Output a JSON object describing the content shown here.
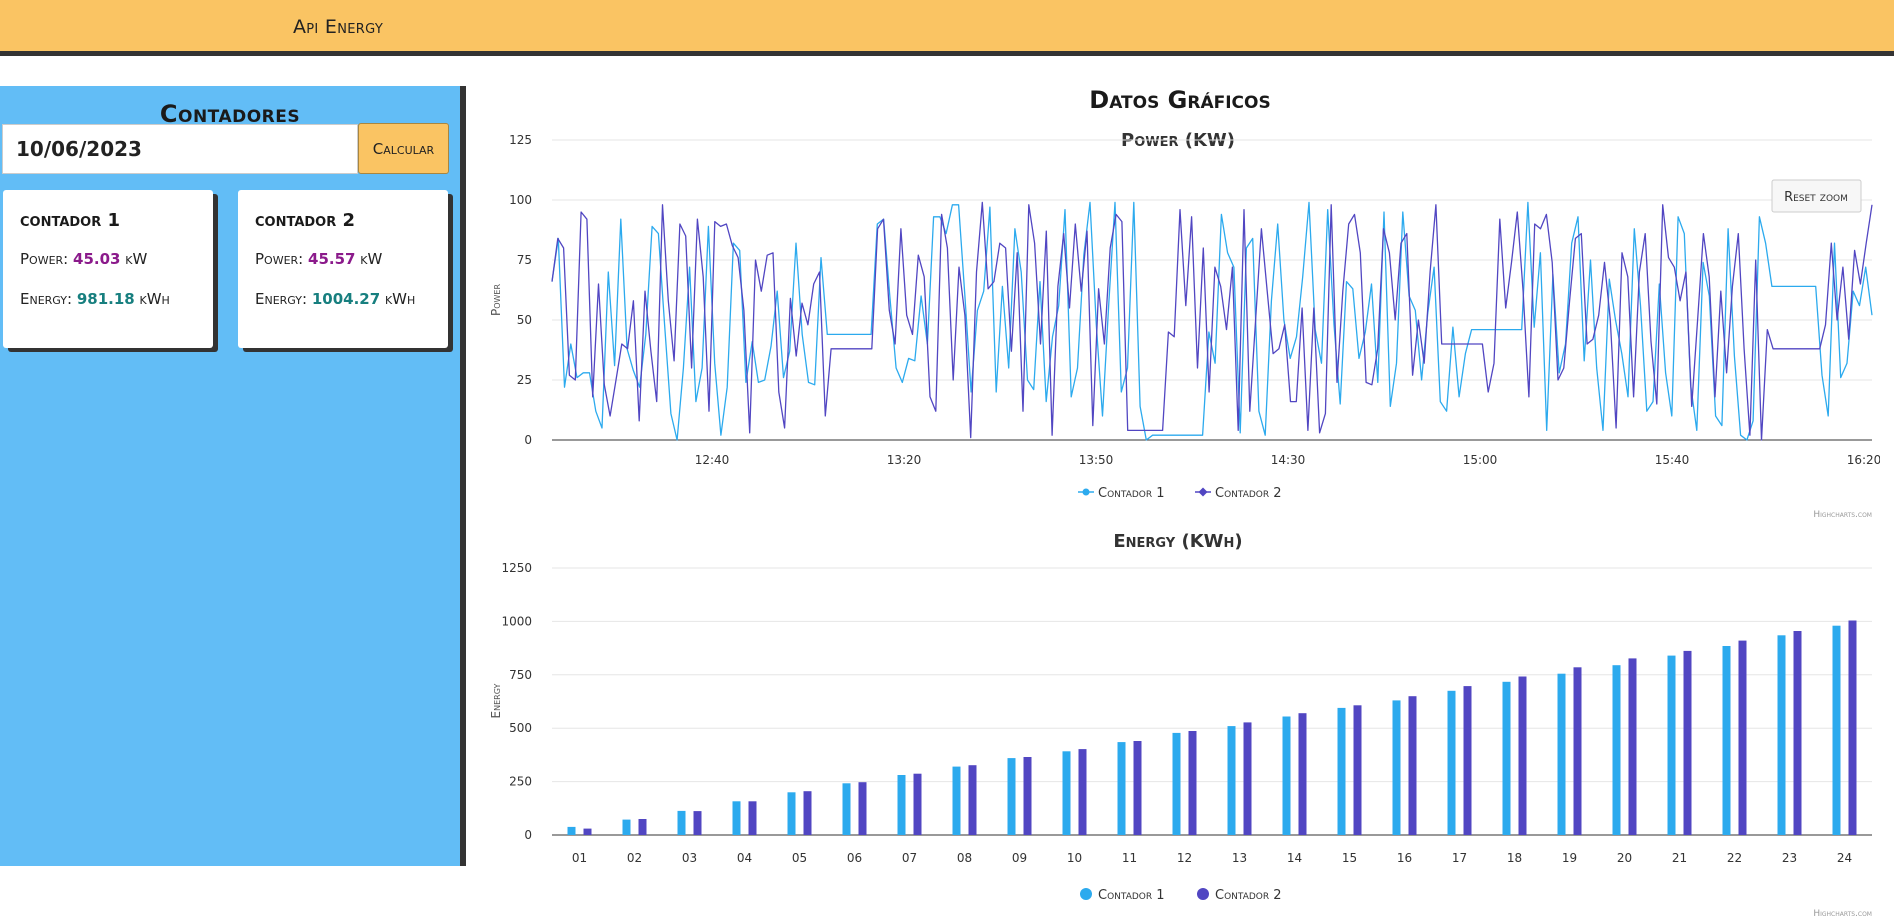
{
  "header": {
    "brand": "Api Energy"
  },
  "sidebar": {
    "title": "Contadores",
    "date_value": "10/06/2023",
    "calc_label": "Calcular",
    "cards": [
      {
        "title": "contador 1",
        "power_label": "Power:",
        "power_value": "45.03",
        "power_unit": "kW",
        "energy_label": "Energy:",
        "energy_value": "981.18",
        "energy_unit": "kWh"
      },
      {
        "title": "contador 2",
        "power_label": "Power:",
        "power_value": "45.57",
        "power_unit": "kW",
        "energy_label": "Energy:",
        "energy_value": "1004.27",
        "energy_unit": "kWh"
      }
    ]
  },
  "main": {
    "title": "Datos Gráficos"
  },
  "colors": {
    "series1": "#2caaee",
    "series2": "#5146c2",
    "header_bg": "#fac463",
    "sidebar_bg": "#62bdf6"
  },
  "chart_data": [
    {
      "type": "line",
      "title": "Power (KW)",
      "ylabel": "Power",
      "xlabel": "",
      "ylim": [
        0,
        125
      ],
      "yticks": [
        0,
        25,
        50,
        75,
        100,
        125
      ],
      "xticks": [
        "12:40",
        "13:20",
        "13:50",
        "14:30",
        "15:00",
        "15:40",
        "16:20"
      ],
      "reset_zoom_label": "Reset zoom",
      "credit": "Highcharts.com",
      "legend": "bottom-center",
      "series": [
        {
          "name": "Contador 1",
          "values": [
            66,
            84,
            22,
            40,
            26,
            28,
            28,
            12,
            5,
            70,
            31,
            92,
            38,
            29,
            22,
            44,
            89,
            86,
            48,
            11,
            0,
            30,
            72,
            16,
            30,
            89,
            32,
            2,
            22,
            82,
            79,
            24,
            41,
            24,
            25,
            39,
            62,
            26,
            37,
            82,
            44,
            24,
            23,
            76,
            44,
            44,
            44,
            44,
            44,
            44,
            44,
            44,
            90,
            92,
            60,
            30,
            24,
            34,
            33,
            60,
            40,
            93,
            93,
            86,
            98,
            98,
            60,
            20,
            54,
            62,
            97,
            20,
            64,
            30,
            88,
            70,
            25,
            21,
            66,
            16,
            43,
            56,
            96,
            18,
            30,
            77,
            99,
            48,
            10,
            57,
            99,
            20,
            30,
            99,
            14,
            0,
            2,
            2,
            2,
            2,
            2,
            2,
            2,
            2,
            2,
            45,
            32,
            94,
            78,
            72,
            3,
            80,
            84,
            12,
            2,
            58,
            90,
            50,
            34,
            43,
            68,
            99,
            46,
            32,
            96,
            48,
            15,
            66,
            63,
            34,
            45,
            65,
            24,
            95,
            14,
            32,
            95,
            60,
            54,
            25,
            53,
            72,
            16,
            12,
            47,
            18,
            36,
            46,
            46,
            46,
            46,
            46,
            46,
            46,
            46,
            46,
            99,
            47,
            78,
            4,
            69,
            28,
            40,
            82,
            93,
            33,
            75,
            30,
            4,
            67,
            50,
            36,
            18,
            88,
            56,
            12,
            16,
            65,
            28,
            10,
            93,
            86,
            23,
            4,
            74,
            60,
            10,
            6,
            88,
            35,
            2,
            0,
            8,
            93,
            82,
            64,
            64,
            64,
            64,
            64,
            64,
            64,
            64,
            27,
            10,
            82,
            26,
            32,
            62,
            56,
            72,
            52
          ]
        },
        {
          "name": "Contador 2",
          "values": [
            66,
            84,
            80,
            27,
            25,
            95,
            92,
            18,
            65,
            23,
            10,
            25,
            40,
            38,
            58,
            8,
            62,
            37,
            16,
            98,
            58,
            33,
            90,
            85,
            30,
            92,
            68,
            12,
            91,
            89,
            90,
            81,
            76,
            54,
            3,
            75,
            62,
            77,
            78,
            20,
            5,
            59,
            35,
            57,
            48,
            65,
            70,
            10,
            38,
            38,
            38,
            38,
            38,
            38,
            38,
            38,
            88,
            92,
            54,
            40,
            88,
            52,
            44,
            77,
            68,
            18,
            12,
            94,
            80,
            25,
            72,
            52,
            1,
            70,
            99,
            63,
            66,
            82,
            80,
            37,
            78,
            12,
            98,
            82,
            40,
            87,
            2,
            64,
            86,
            55,
            90,
            62,
            87,
            6,
            63,
            40,
            80,
            94,
            91,
            4,
            4,
            4,
            4,
            4,
            4,
            4,
            45,
            43,
            96,
            56,
            93,
            30,
            80,
            20,
            72,
            64,
            46,
            72,
            4,
            96,
            12,
            50,
            88,
            62,
            36,
            38,
            48,
            16,
            16,
            55,
            4,
            55,
            3,
            11,
            98,
            24,
            62,
            90,
            94,
            78,
            24,
            23,
            38,
            88,
            78,
            50,
            82,
            86,
            27,
            50,
            32,
            70,
            98,
            40,
            40,
            40,
            40,
            40,
            40,
            40,
            40,
            20,
            32,
            92,
            55,
            74,
            95,
            62,
            18,
            90,
            88,
            94,
            74,
            25,
            30,
            58,
            84,
            86,
            40,
            42,
            52,
            74,
            50,
            5,
            78,
            68,
            18,
            70,
            86,
            41,
            15,
            98,
            76,
            72,
            58,
            70,
            14,
            50,
            86,
            68,
            18,
            62,
            28,
            64,
            86,
            38,
            2,
            75,
            0,
            46,
            38,
            38,
            38,
            38,
            38,
            38,
            38,
            38,
            38,
            48,
            82,
            50,
            72,
            42,
            79,
            65,
            82,
            98
          ]
        }
      ]
    },
    {
      "type": "bar",
      "title": "Energy (KWh)",
      "ylabel": "Energy",
      "xlabel": "",
      "ylim": [
        0,
        1250
      ],
      "yticks": [
        0,
        250,
        500,
        750,
        1000,
        1250
      ],
      "categories": [
        "01",
        "02",
        "03",
        "04",
        "05",
        "06",
        "07",
        "08",
        "09",
        "10",
        "11",
        "12",
        "13",
        "14",
        "15",
        "16",
        "17",
        "18",
        "19",
        "20",
        "21",
        "22",
        "23",
        "24"
      ],
      "credit": "Highcharts.com",
      "legend": "bottom-center",
      "series": [
        {
          "name": "Contador 1",
          "values": [
            38,
            72,
            113,
            158,
            200,
            242,
            281,
            320,
            360,
            392,
            435,
            478,
            510,
            555,
            595,
            630,
            675,
            717,
            755,
            795,
            840,
            885,
            935,
            980
          ]
        },
        {
          "name": "Contador 2",
          "values": [
            30,
            75,
            112,
            158,
            205,
            247,
            287,
            327,
            365,
            402,
            440,
            487,
            527,
            570,
            607,
            650,
            697,
            742,
            785,
            827,
            862,
            910,
            955,
            1004
          ]
        }
      ]
    }
  ]
}
